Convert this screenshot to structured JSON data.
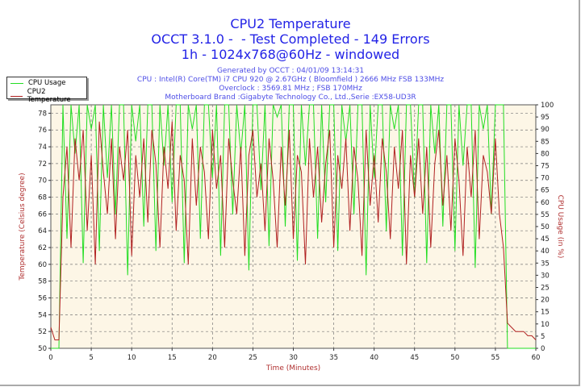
{
  "header": {
    "title": "CPU2 Temperature",
    "subtitle": "OCCT 3.1.0 -  - Test Completed - 149 Errors",
    "subtitle2": "1h - 1024x768@60Hz - windowed",
    "generated": "Generated by OCCT : 04/01/09 13:14:31",
    "cpu": "CPU : Intel(R) Core(TM) i7 CPU 920 @ 2.67GHz ( Bloomfield ) 2666 MHz FSB 133MHz",
    "overclock": "Overclock : 3569.81 MHz ; FSB 170MHz",
    "motherboard": "Motherboard Brand :Gigabyte Technology Co., Ltd.,Serie :EX58-UD3R"
  },
  "chart_data": {
    "type": "line",
    "title": "CPU2 Temperature",
    "xlabel": "Time (Minutes)",
    "ylabel": "Temperature (Celsius degree)",
    "y2label": "CPU Usage (in %)",
    "xlim": [
      0,
      60
    ],
    "ylim": [
      50,
      79
    ],
    "y2lim": [
      0,
      100
    ],
    "x_ticks": [
      0,
      5,
      10,
      15,
      20,
      25,
      30,
      35,
      40,
      45,
      50,
      55,
      60
    ],
    "y_ticks": [
      50,
      52,
      54,
      56,
      58,
      60,
      62,
      64,
      66,
      68,
      70,
      72,
      74,
      76,
      78
    ],
    "y2_ticks": [
      0,
      5,
      10,
      15,
      20,
      25,
      30,
      35,
      40,
      45,
      50,
      55,
      60,
      65,
      70,
      75,
      80,
      85,
      90,
      95,
      100
    ],
    "grid": true,
    "legend_position": "top-left",
    "background": "#fdf6e6",
    "x_start": 0,
    "x_step": 0.5,
    "series": [
      {
        "name": "CPU Usage",
        "axis": "right",
        "color": "#22dd22",
        "values": [
          0,
          0,
          0,
          100,
          45,
          100,
          80,
          100,
          35,
          100,
          90,
          100,
          40,
          100,
          70,
          100,
          55,
          100,
          100,
          30,
          100,
          85,
          100,
          50,
          100,
          100,
          40,
          100,
          75,
          100,
          60,
          100,
          100,
          35,
          100,
          90,
          100,
          45,
          100,
          100,
          70,
          100,
          38,
          100,
          100,
          55,
          100,
          80,
          100,
          32,
          100,
          100,
          65,
          100,
          42,
          100,
          95,
          100,
          50,
          100,
          100,
          36,
          100,
          75,
          100,
          100,
          45,
          100,
          60,
          100,
          100,
          40,
          100,
          85,
          100,
          55,
          100,
          100,
          30,
          100,
          70,
          100,
          100,
          48,
          100,
          90,
          100,
          38,
          100,
          100,
          62,
          100,
          100,
          35,
          100,
          80,
          100,
          50,
          100,
          100,
          40,
          100,
          75,
          100,
          100,
          33,
          100,
          90,
          100,
          55,
          100,
          100,
          100,
          0,
          0,
          0,
          0,
          0,
          0,
          0,
          0
        ]
      },
      {
        "name": "CPU2 Temperature",
        "axis": "left",
        "color": "#b02020",
        "values": [
          52.5,
          51,
          51,
          68,
          74,
          62,
          75,
          70,
          76,
          64,
          73,
          60,
          77,
          71,
          66,
          75,
          63,
          74,
          70,
          76,
          61,
          73,
          68,
          75,
          65,
          76,
          72,
          62,
          74,
          69,
          77,
          64,
          73,
          70,
          60,
          75,
          67,
          74,
          71,
          63,
          76,
          69,
          73,
          62,
          75,
          70,
          66,
          74,
          61,
          73,
          76,
          68,
          72,
          64,
          75,
          70,
          62,
          74,
          67,
          76,
          63,
          73,
          71,
          60,
          75,
          68,
          74,
          65,
          72,
          76,
          62,
          73,
          69,
          75,
          64,
          74,
          70,
          61,
          76,
          67,
          73,
          65,
          75,
          71,
          63,
          74,
          69,
          76,
          60,
          73,
          68,
          75,
          66,
          74,
          62,
          72,
          76,
          67,
          73,
          64,
          75,
          70,
          61,
          74,
          68,
          76,
          63,
          73,
          71,
          66,
          75,
          66,
          62,
          53,
          52.5,
          52,
          52,
          52,
          51.5,
          51.5,
          51
        ]
      }
    ]
  }
}
